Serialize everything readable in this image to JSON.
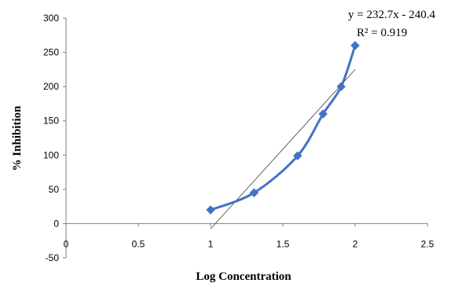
{
  "chart_data": {
    "type": "scatter",
    "title": "",
    "xlabel": "Log Concentration",
    "ylabel": "% Inhibition",
    "xlim": [
      0,
      2.5
    ],
    "ylim": [
      -50,
      300
    ],
    "x_ticks": [
      0,
      0.5,
      1,
      1.5,
      2,
      2.5
    ],
    "x_tick_labels": [
      "0",
      "0.5",
      "1",
      "1.5",
      "2",
      "2.5"
    ],
    "y_ticks": [
      -50,
      0,
      50,
      100,
      150,
      200,
      250,
      300
    ],
    "y_tick_labels": [
      "-50",
      "0",
      "50",
      "100",
      "150",
      "200",
      "250",
      "300"
    ],
    "grid": false,
    "legend": "none",
    "series": [
      {
        "x": [
          1.0,
          1.301,
          1.602,
          1.778,
          1.903,
          2.0
        ],
        "y": [
          20,
          45,
          99,
          160,
          200,
          260
        ],
        "color": "#4472C4",
        "marker": "diamond",
        "smooth_line": true
      }
    ],
    "trendline": {
      "type": "linear",
      "slope": 232.7,
      "intercept": -240.4,
      "x_range": [
        1.0,
        2.0
      ],
      "color": "#404040"
    },
    "annotations": {
      "equation": "y = 232.7x - 240.4",
      "r_squared": "R² = 0.919"
    }
  }
}
